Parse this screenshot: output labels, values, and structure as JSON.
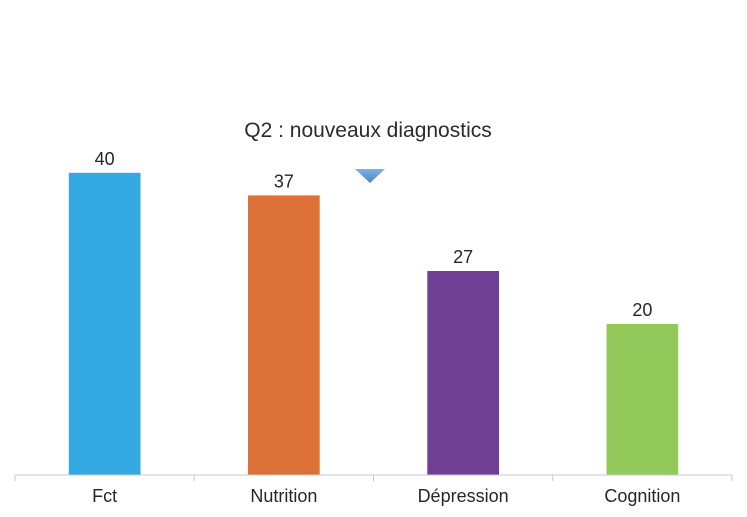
{
  "chart_data": {
    "type": "bar",
    "title": "Q2 : nouveaux diagnostics",
    "categories": [
      "Fct",
      "Nutrition",
      "Dépression",
      "Cognition"
    ],
    "values": [
      40,
      37,
      27,
      20
    ],
    "colors": [
      "#33A9E1",
      "#DD7238",
      "#6F3F94",
      "#93C95B"
    ],
    "xlabel": "",
    "ylabel": "",
    "ylim": [
      0,
      45
    ],
    "grid": false,
    "legend": "none",
    "data_labels": true
  },
  "marker": {
    "icon": "triangle-down-icon",
    "color": "#5B9BD5"
  }
}
